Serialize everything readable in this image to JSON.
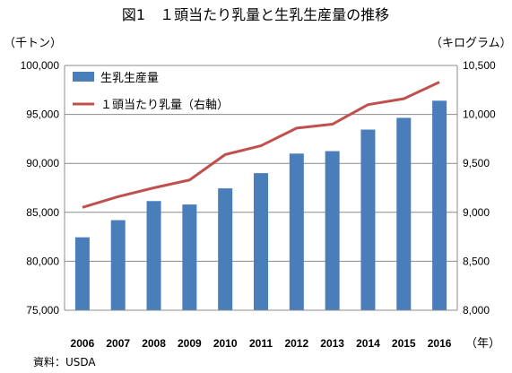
{
  "chart_data": {
    "type": "bar",
    "title": "図1　１頭当たり乳量と生乳生産量の推移",
    "left_unit": "（千トン）",
    "right_unit": "（キログラム）",
    "x_unit": "（年）",
    "source": "資料：USDA",
    "categories": [
      "2006",
      "2007",
      "2008",
      "2009",
      "2010",
      "2011",
      "2012",
      "2013",
      "2014",
      "2015",
      "2016"
    ],
    "y_left": {
      "min": 75000,
      "max": 100000,
      "ticks": [
        "75,000",
        "80,000",
        "85,000",
        "90,000",
        "95,000",
        "100,000"
      ]
    },
    "y_right": {
      "min": 8000,
      "max": 10500,
      "ticks": [
        "8,000",
        "8,500",
        "9,000",
        "9,500",
        "10,000",
        "10,500"
      ]
    },
    "grid": true,
    "legend_position": "top-left",
    "series": [
      {
        "name": "生乳生産量",
        "type": "bar",
        "axis": "left",
        "color": "#4a7ebb",
        "values": [
          82450,
          84200,
          86150,
          85800,
          87450,
          89000,
          91000,
          91250,
          93450,
          94650,
          96400
        ]
      },
      {
        "name": "１頭当たり乳量（右軸）",
        "type": "line",
        "axis": "right",
        "color": "#c0504d",
        "values": [
          9050,
          9160,
          9250,
          9330,
          9590,
          9680,
          9860,
          9900,
          10100,
          10160,
          10330
        ]
      }
    ]
  }
}
